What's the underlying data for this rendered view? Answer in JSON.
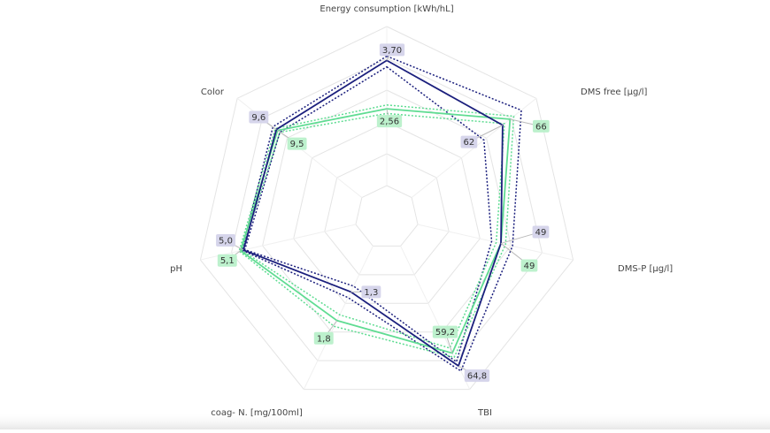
{
  "chart_data": {
    "type": "radar",
    "axes": [
      "Energy consumption [kWh/hL]",
      "DMS free [µg/l]",
      "DMS-P [µg/l]",
      "TBI",
      "coag- N. [mg/100ml]",
      "pH",
      "Color"
    ],
    "ranges": [
      [
        0,
        4.5
      ],
      [
        0,
        80
      ],
      [
        0,
        80
      ],
      [
        0,
        75
      ],
      [
        0,
        3
      ],
      [
        0,
        6.5
      ],
      [
        0,
        13
      ]
    ],
    "series": [
      {
        "color": "#1b1f7d",
        "dash": "dotted",
        "values": [
          3.8,
          72,
          54,
          67,
          1.4,
          5.05,
          9.9
        ]
      },
      {
        "color": "#1b1f7d",
        "dash": "dotted",
        "values": [
          3.55,
          52,
          45,
          63,
          1.2,
          4.95,
          9.3
        ]
      },
      {
        "color": "#5fdc92",
        "dash": "dotted",
        "values": [
          2.65,
          68,
          51,
          61,
          1.9,
          5.15,
          9.7
        ]
      },
      {
        "color": "#5fdc92",
        "dash": "dotted",
        "values": [
          2.45,
          63,
          47,
          57,
          1.7,
          5.05,
          9.3
        ]
      },
      {
        "color": "#5fdc92",
        "dash": "solid",
        "label_bg": "#bdf1cd",
        "values": [
          2.56,
          66,
          49,
          59.2,
          1.8,
          5.1,
          9.5
        ],
        "value_labels": [
          "2,56",
          "66",
          "49",
          "59,2",
          "1,8",
          "5,1",
          "9,5"
        ]
      },
      {
        "color": "#1b1f7d",
        "dash": "solid",
        "label_bg": "#d6d5eb",
        "values": [
          3.7,
          62,
          49,
          64.8,
          1.3,
          5.0,
          9.6
        ],
        "value_labels": [
          "3,70",
          "62",
          "49",
          "64,8",
          "1,3",
          "5,0",
          "9,6"
        ]
      }
    ],
    "rings": 6
  }
}
